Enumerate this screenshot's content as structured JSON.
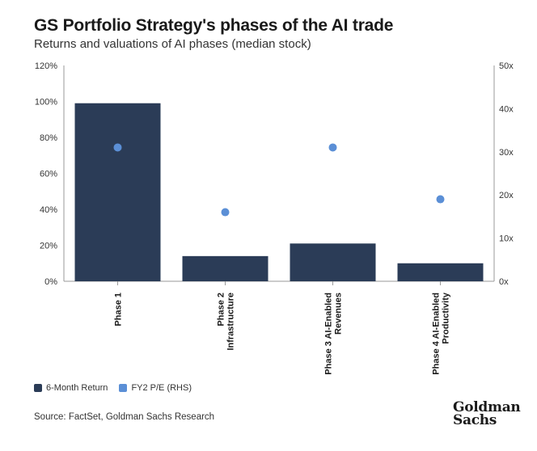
{
  "header": {
    "title": "GS Portfolio Strategy's phases of the AI trade",
    "subtitle": "Returns and valuations of AI phases (median stock)"
  },
  "chart_data": {
    "type": "bar",
    "categories": [
      [
        "Phase 1"
      ],
      [
        "Phase 2",
        "Infrastructure"
      ],
      [
        "Phase 3 AI-Enabled",
        "Revenues"
      ],
      [
        "Phase 4 AI-Enabled",
        "Productivity"
      ]
    ],
    "series": [
      {
        "name": "6-Month Return",
        "type": "bar",
        "axis": "left",
        "values": [
          99,
          14,
          21,
          10
        ],
        "color": "#2b3c57"
      },
      {
        "name": "FY2 P/E (RHS)",
        "type": "scatter",
        "axis": "right",
        "values": [
          31,
          16,
          31,
          19
        ],
        "color": "#5b8fd6"
      }
    ],
    "y_left": {
      "min": 0,
      "max": 120,
      "step": 20,
      "ticks": [
        "0%",
        "20%",
        "40%",
        "60%",
        "80%",
        "100%",
        "120%"
      ]
    },
    "y_right": {
      "min": 0,
      "max": 50,
      "step": 10,
      "ticks": [
        "0x",
        "10x",
        "20x",
        "30x",
        "40x",
        "50x"
      ]
    },
    "grid": false,
    "legend": "bottom-left"
  },
  "legend": {
    "items": [
      {
        "label": "6-Month Return",
        "color": "#2b3c57"
      },
      {
        "label": "FY2 P/E (RHS)",
        "color": "#5b8fd6"
      }
    ]
  },
  "footer": {
    "source": "Source: FactSet, Goldman Sachs Research",
    "logo_line1": "Goldman",
    "logo_line2": "Sachs"
  }
}
